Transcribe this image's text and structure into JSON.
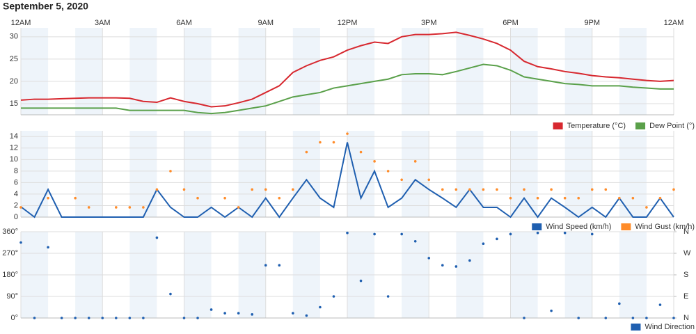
{
  "title": "September 5, 2020",
  "chart_data": [
    {
      "type": "line",
      "xlim": [
        0,
        24
      ],
      "xticks": [
        {
          "value": 0,
          "label": "12AM"
        },
        {
          "value": 3,
          "label": "3AM"
        },
        {
          "value": 6,
          "label": "6AM"
        },
        {
          "value": 9,
          "label": "9AM"
        },
        {
          "value": 12,
          "label": "12PM"
        },
        {
          "value": 15,
          "label": "3PM"
        },
        {
          "value": 18,
          "label": "6PM"
        },
        {
          "value": 21,
          "label": "9PM"
        },
        {
          "value": 24,
          "label": "12AM"
        }
      ],
      "x": [
        0,
        0.5,
        1,
        1.5,
        2,
        2.5,
        3,
        3.5,
        4,
        4.5,
        5,
        5.5,
        6,
        6.5,
        7,
        7.5,
        8,
        8.5,
        9,
        9.5,
        10,
        10.5,
        11,
        11.5,
        12,
        12.5,
        13,
        13.5,
        14,
        14.5,
        15,
        15.5,
        16,
        16.5,
        17,
        17.5,
        18,
        18.5,
        19,
        19.5,
        20,
        20.5,
        21,
        21.5,
        22,
        22.5,
        23,
        23.5,
        24
      ],
      "ylim": [
        12.5,
        32
      ],
      "yticks": [
        15,
        20,
        25,
        30
      ],
      "series": [
        {
          "name": "Temperature (°C)",
          "color": "#d7282f",
          "values": [
            15.8,
            16,
            16,
            16.1,
            16.2,
            16.3,
            16.3,
            16.3,
            16.2,
            15.5,
            15.3,
            16.3,
            15.5,
            15,
            14.3,
            14.5,
            15.2,
            16,
            17.5,
            19,
            22,
            23.5,
            24.7,
            25.5,
            27,
            28,
            28.8,
            28.5,
            30,
            30.5,
            30.5,
            30.7,
            31,
            30.3,
            29.5,
            28.5,
            27,
            24.5,
            23.3,
            22.8,
            22.2,
            21.8,
            21.3,
            21,
            20.8,
            20.5,
            20.2,
            20,
            20.2
          ]
        },
        {
          "name": "Dew Point (°)",
          "color": "#5aa04a",
          "values": [
            14,
            14,
            14,
            14,
            14,
            14,
            14,
            14,
            13.5,
            13.5,
            13.5,
            13.5,
            13.5,
            13,
            12.8,
            13,
            13.5,
            14,
            14.5,
            15.5,
            16.5,
            17,
            17.5,
            18.5,
            19,
            19.5,
            20,
            20.5,
            21.5,
            21.7,
            21.7,
            21.5,
            22.2,
            23,
            23.8,
            23.5,
            22.5,
            21,
            20.5,
            20,
            19.5,
            19.3,
            19,
            19,
            19,
            18.7,
            18.5,
            18.3,
            18.3
          ]
        }
      ]
    },
    {
      "type": "line",
      "xlim": [
        0,
        24
      ],
      "x": [
        0,
        0.5,
        1,
        1.5,
        2,
        2.5,
        3,
        3.5,
        4,
        4.5,
        5,
        5.5,
        6,
        6.5,
        7,
        7.5,
        8,
        8.5,
        9,
        9.5,
        10,
        10.5,
        11,
        11.5,
        12,
        12.5,
        13,
        13.5,
        14,
        14.5,
        15,
        15.5,
        16,
        16.5,
        17,
        17.5,
        18,
        18.5,
        19,
        19.5,
        20,
        20.5,
        21,
        21.5,
        22,
        22.5,
        23,
        23.5,
        24
      ],
      "ylim": [
        0,
        15
      ],
      "yticks": [
        0,
        2,
        4,
        6,
        8,
        10,
        12,
        14
      ],
      "series": [
        {
          "name": "Wind Speed (km/h)",
          "color": "#1f5fb0",
          "values": [
            1.8,
            0,
            4.8,
            0,
            0,
            0,
            0,
            0,
            0,
            0,
            4.8,
            1.7,
            0,
            0,
            1.7,
            0,
            1.7,
            0,
            3.3,
            0,
            3.3,
            6.5,
            3.3,
            1.7,
            13,
            3.3,
            8,
            1.7,
            3.3,
            6.5,
            4.8,
            3.3,
            1.7,
            4.8,
            1.7,
            1.7,
            0,
            3.3,
            0,
            3.3,
            1.7,
            0,
            1.7,
            0,
            3.3,
            0,
            0,
            3.3,
            0
          ]
        },
        {
          "name": "Wind Gust (km/h)",
          "color": "#ff8c2a",
          "markers_only": true,
          "values": [
            1.7,
            null,
            3.3,
            null,
            3.3,
            1.7,
            null,
            1.7,
            1.7,
            1.7,
            4.8,
            8,
            4.8,
            3.3,
            null,
            3.3,
            1.7,
            4.8,
            4.8,
            3.3,
            4.8,
            11.3,
            13,
            13,
            14.5,
            11.3,
            9.7,
            8,
            6.5,
            9.7,
            6.5,
            4.8,
            4.8,
            4.8,
            4.8,
            4.8,
            3.3,
            4.8,
            3.3,
            4.8,
            3.3,
            3.3,
            4.8,
            4.8,
            3.3,
            3.3,
            1.7,
            3.3,
            4.8
          ]
        }
      ]
    },
    {
      "type": "scatter",
      "xlim": [
        0,
        24
      ],
      "x": [
        0,
        0.5,
        1,
        1.5,
        2,
        2.5,
        3,
        3.5,
        4,
        4.5,
        5,
        5.5,
        6,
        6.5,
        7,
        7.5,
        8,
        8.5,
        9,
        9.5,
        10,
        10.5,
        11,
        11.5,
        12,
        12.5,
        13,
        13.5,
        14,
        14.5,
        15,
        15.5,
        16,
        16.5,
        17,
        17.5,
        18,
        18.5,
        19,
        19.5,
        20,
        20.5,
        21,
        21.5,
        22,
        22.5,
        23,
        23.5,
        24
      ],
      "ylim": [
        0,
        360
      ],
      "yticks": [
        {
          "value": 0,
          "label": "0°"
        },
        {
          "value": 90,
          "label": "90°"
        },
        {
          "value": 180,
          "label": "180°"
        },
        {
          "value": 270,
          "label": "270°"
        },
        {
          "value": 360,
          "label": "360°"
        }
      ],
      "y2lim": [
        0,
        360
      ],
      "y2ticks": [
        {
          "value": 0,
          "label": "N"
        },
        {
          "value": 90,
          "label": "E"
        },
        {
          "value": 180,
          "label": "S"
        },
        {
          "value": 270,
          "label": "W"
        },
        {
          "value": 360,
          "label": "N"
        }
      ],
      "series": [
        {
          "name": "Wind Direction",
          "color": "#1f5fb0",
          "values": [
            315,
            0,
            295,
            0,
            0,
            0,
            0,
            0,
            0,
            0,
            335,
            100,
            0,
            0,
            35,
            20,
            20,
            15,
            220,
            220,
            20,
            10,
            45,
            90,
            355,
            155,
            350,
            90,
            350,
            320,
            250,
            220,
            215,
            240,
            310,
            330,
            350,
            0,
            355,
            30,
            355,
            0,
            350,
            0,
            60,
            0,
            0,
            55,
            0
          ]
        }
      ]
    }
  ]
}
